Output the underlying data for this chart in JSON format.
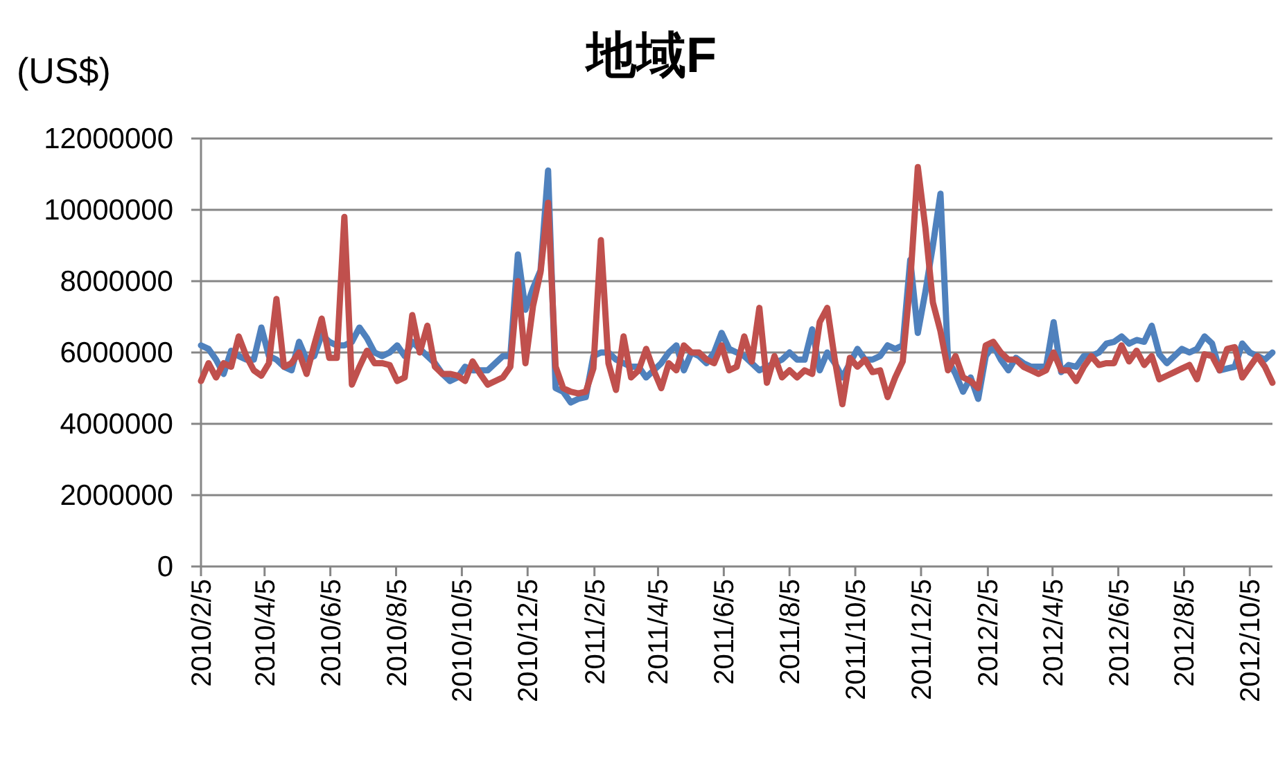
{
  "chart_data": {
    "type": "line",
    "title": "地域F",
    "ylabel": "(US$)",
    "grid": "y",
    "line_style": "solid",
    "marker": "none",
    "xlim": [
      "2010-02-05",
      "2012-10-26"
    ],
    "xticks": [
      {
        "value": "2010-02-05",
        "label": "2010/2/5"
      },
      {
        "value": "2010-04-05",
        "label": "2010/4/5"
      },
      {
        "value": "2010-06-05",
        "label": "2010/6/5"
      },
      {
        "value": "2010-08-05",
        "label": "2010/8/5"
      },
      {
        "value": "2010-10-05",
        "label": "2010/10/5"
      },
      {
        "value": "2010-12-05",
        "label": "2010/12/5"
      },
      {
        "value": "2011-02-05",
        "label": "2011/2/5"
      },
      {
        "value": "2011-04-05",
        "label": "2011/4/5"
      },
      {
        "value": "2011-06-05",
        "label": "2011/6/5"
      },
      {
        "value": "2011-08-05",
        "label": "2011/8/5"
      },
      {
        "value": "2011-10-05",
        "label": "2011/10/5"
      },
      {
        "value": "2011-12-05",
        "label": "2011/12/5"
      },
      {
        "value": "2012-02-05",
        "label": "2012/2/5"
      },
      {
        "value": "2012-04-05",
        "label": "2012/4/5"
      },
      {
        "value": "2012-06-05",
        "label": "2012/6/5"
      },
      {
        "value": "2012-08-05",
        "label": "2012/8/5"
      },
      {
        "value": "2012-10-05",
        "label": "2012/10/5"
      }
    ],
    "ylim": [
      0,
      12000000
    ],
    "yticks": [
      0,
      2000000,
      4000000,
      6000000,
      8000000,
      10000000,
      12000000
    ],
    "x": [
      "2010-02-05",
      "2010-02-12",
      "2010-02-19",
      "2010-02-26",
      "2010-03-05",
      "2010-03-12",
      "2010-03-19",
      "2010-03-26",
      "2010-04-02",
      "2010-04-09",
      "2010-04-16",
      "2010-04-23",
      "2010-04-30",
      "2010-05-07",
      "2010-05-14",
      "2010-05-21",
      "2010-05-28",
      "2010-06-04",
      "2010-06-11",
      "2010-06-18",
      "2010-06-25",
      "2010-07-02",
      "2010-07-09",
      "2010-07-16",
      "2010-07-23",
      "2010-07-30",
      "2010-08-06",
      "2010-08-13",
      "2010-08-20",
      "2010-08-27",
      "2010-09-03",
      "2010-09-10",
      "2010-09-17",
      "2010-09-24",
      "2010-10-01",
      "2010-10-08",
      "2010-10-15",
      "2010-10-22",
      "2010-10-29",
      "2010-11-05",
      "2010-11-12",
      "2010-11-19",
      "2010-11-26",
      "2010-12-03",
      "2010-12-10",
      "2010-12-17",
      "2010-12-24",
      "2010-12-31",
      "2011-01-07",
      "2011-01-14",
      "2011-01-21",
      "2011-01-28",
      "2011-02-04",
      "2011-02-11",
      "2011-02-18",
      "2011-02-25",
      "2011-03-04",
      "2011-03-11",
      "2011-03-18",
      "2011-03-25",
      "2011-04-01",
      "2011-04-08",
      "2011-04-15",
      "2011-04-22",
      "2011-04-29",
      "2011-05-06",
      "2011-05-13",
      "2011-05-20",
      "2011-05-27",
      "2011-06-03",
      "2011-06-10",
      "2011-06-17",
      "2011-06-24",
      "2011-07-01",
      "2011-07-08",
      "2011-07-15",
      "2011-07-22",
      "2011-07-29",
      "2011-08-05",
      "2011-08-12",
      "2011-08-19",
      "2011-08-26",
      "2011-09-02",
      "2011-09-09",
      "2011-09-16",
      "2011-09-23",
      "2011-09-30",
      "2011-10-07",
      "2011-10-14",
      "2011-10-21",
      "2011-10-28",
      "2011-11-04",
      "2011-11-11",
      "2011-11-18",
      "2011-11-25",
      "2011-12-02",
      "2011-12-09",
      "2011-12-16",
      "2011-12-23",
      "2011-12-30",
      "2012-01-06",
      "2012-01-13",
      "2012-01-20",
      "2012-01-27",
      "2012-02-03",
      "2012-02-10",
      "2012-02-17",
      "2012-02-24",
      "2012-03-02",
      "2012-03-09",
      "2012-03-16",
      "2012-03-23",
      "2012-03-30",
      "2012-04-06",
      "2012-04-13",
      "2012-04-20",
      "2012-04-27",
      "2012-05-04",
      "2012-05-11",
      "2012-05-18",
      "2012-05-25",
      "2012-06-01",
      "2012-06-08",
      "2012-06-15",
      "2012-06-22",
      "2012-06-29",
      "2012-07-06",
      "2012-07-13",
      "2012-07-20",
      "2012-07-27",
      "2012-08-03",
      "2012-08-10",
      "2012-08-17",
      "2012-08-24",
      "2012-08-31",
      "2012-09-07",
      "2012-09-14",
      "2012-09-21",
      "2012-09-28",
      "2012-10-05",
      "2012-10-12",
      "2012-10-19",
      "2012-10-26"
    ],
    "series": [
      {
        "color": "#4f81bd",
        "values": [
          6200000,
          6100000,
          5800000,
          5400000,
          6050000,
          5900000,
          5800000,
          5800000,
          6700000,
          5900000,
          5800000,
          5600000,
          5500000,
          6300000,
          5800000,
          5900000,
          6500000,
          6300000,
          6200000,
          6200000,
          6300000,
          6700000,
          6400000,
          6000000,
          5900000,
          6000000,
          6200000,
          5900000,
          6300000,
          6100000,
          5900000,
          5700000,
          5400000,
          5200000,
          5300000,
          5600000,
          5500000,
          5500000,
          5500000,
          5700000,
          5900000,
          5900000,
          8750000,
          7200000,
          7800000,
          8300000,
          11100000,
          5000000,
          4900000,
          4600000,
          4700000,
          4750000,
          5900000,
          6000000,
          6000000,
          5800000,
          5700000,
          5600000,
          5600000,
          5300000,
          5500000,
          5700000,
          6000000,
          6200000,
          5500000,
          6000000,
          5900000,
          5700000,
          6000000,
          6550000,
          6100000,
          6000000,
          5900000,
          5700000,
          5500000,
          5600000,
          5700000,
          5800000,
          6000000,
          5800000,
          5800000,
          6650000,
          5500000,
          6000000,
          5700000,
          5300000,
          5700000,
          6100000,
          5800000,
          5800000,
          5900000,
          6200000,
          6100000,
          6200000,
          8600000,
          6550000,
          7700000,
          9000000,
          10450000,
          5800000,
          5400000,
          4900000,
          5300000,
          4700000,
          5900000,
          6200000,
          5800000,
          5500000,
          5850000,
          5700000,
          5600000,
          5600000,
          5600000,
          6850000,
          5450000,
          5650000,
          5600000,
          5900000,
          5900000,
          6000000,
          6250000,
          6300000,
          6450000,
          6250000,
          6350000,
          6300000,
          6750000,
          5950000,
          5700000,
          5900000,
          6100000,
          6000000,
          6100000,
          6450000,
          6250000,
          5500000,
          5550000,
          5600000,
          6250000,
          6000000,
          5900000,
          5800000,
          6000000
        ]
      },
      {
        "color": "#c0504d",
        "values": [
          5200000,
          5700000,
          5300000,
          5700000,
          5600000,
          6450000,
          5900000,
          5500000,
          5350000,
          5700000,
          7500000,
          5600000,
          5700000,
          6000000,
          5400000,
          6200000,
          6950000,
          5850000,
          5850000,
          9800000,
          5100000,
          5600000,
          6050000,
          5700000,
          5700000,
          5650000,
          5200000,
          5300000,
          7050000,
          6000000,
          6750000,
          5600000,
          5400000,
          5400000,
          5350000,
          5200000,
          5750000,
          5400000,
          5100000,
          5200000,
          5300000,
          5600000,
          8000000,
          5700000,
          7300000,
          8250000,
          10200000,
          5600000,
          5000000,
          4900000,
          4850000,
          4900000,
          5550000,
          9150000,
          5700000,
          4950000,
          6450000,
          5300000,
          5500000,
          6100000,
          5500000,
          5000000,
          5700000,
          5500000,
          6200000,
          6000000,
          6000000,
          5800000,
          5700000,
          6200000,
          5500000,
          5600000,
          6450000,
          5750000,
          7250000,
          5150000,
          5900000,
          5300000,
          5500000,
          5300000,
          5500000,
          5400000,
          6850000,
          7250000,
          5800000,
          4550000,
          5850000,
          5600000,
          5800000,
          5450000,
          5500000,
          4750000,
          5300000,
          5750000,
          8000000,
          11200000,
          9500000,
          7400000,
          6600000,
          5500000,
          5900000,
          5300000,
          5200000,
          5000000,
          6200000,
          6300000,
          6000000,
          5800000,
          5800000,
          5600000,
          5500000,
          5400000,
          5500000,
          6000000,
          5500000,
          5500000,
          5200000,
          5600000,
          5900000,
          5650000,
          5700000,
          5700000,
          6200000,
          5750000,
          6050000,
          5650000,
          5900000,
          5250000,
          5350000,
          5450000,
          5550000,
          5650000,
          5250000,
          5950000,
          5900000,
          5500000,
          6100000,
          6150000,
          5300000,
          5600000,
          5900000,
          5600000,
          5150000
        ]
      }
    ]
  }
}
